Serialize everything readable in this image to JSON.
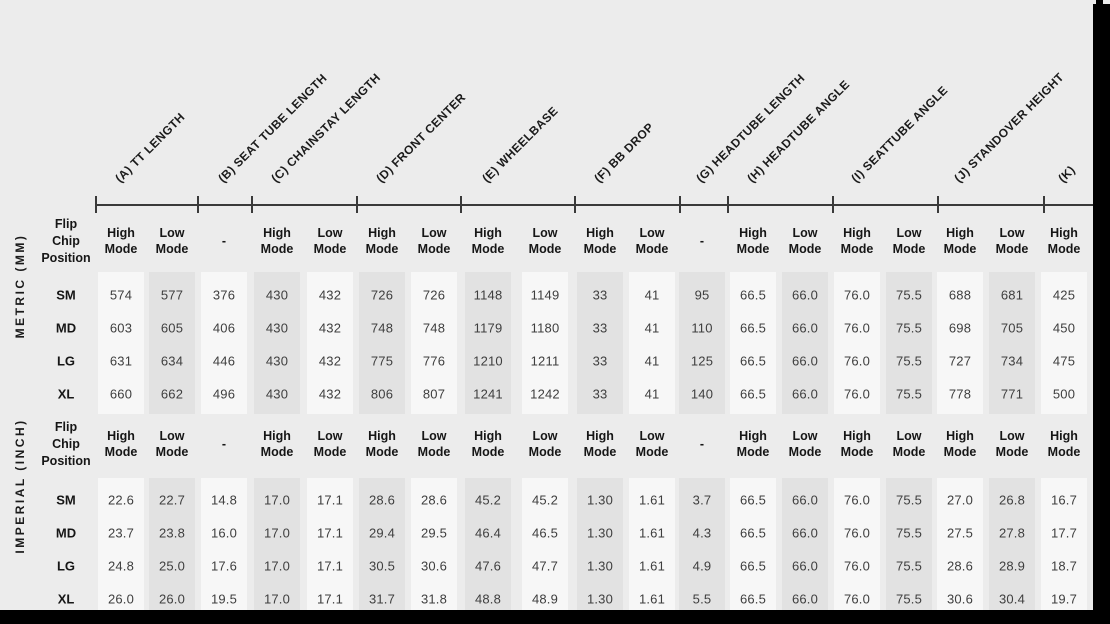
{
  "colors": {
    "background": "#ececec",
    "stripe_light": "#f7f7f7",
    "stripe_dark": "#e2e2e2",
    "frame_black": "#000000",
    "text_heading": "#161616",
    "text_value": "#3e3e3e",
    "axis": "#3a3a3a"
  },
  "chart_data": {
    "type": "table",
    "columns": {
      "groups": [
        {
          "label": "(A) TT LENGTH",
          "cols": [
            "High Mode",
            "Low Mode"
          ]
        },
        {
          "label": "(B) SEAT TUBE LENGTH",
          "cols": [
            "-"
          ]
        },
        {
          "label": "(C) CHAINSTAY LENGTH",
          "cols": [
            "High Mode",
            "Low Mode"
          ]
        },
        {
          "label": "(D) FRONT CENTER",
          "cols": [
            "High Mode",
            "Low Mode"
          ]
        },
        {
          "label": "(E) WHEELBASE",
          "cols": [
            "High Mode",
            "Low Mode"
          ]
        },
        {
          "label": "(F) BB DROP",
          "cols": [
            "High Mode",
            "Low Mode"
          ]
        },
        {
          "label": "(G) HEADTUBE LENGTH",
          "cols": [
            "-"
          ]
        },
        {
          "label": "(H) HEADTUBE ANGLE",
          "cols": [
            "High Mode",
            "Low Mode"
          ]
        },
        {
          "label": "(I) SEATTUBE ANGLE",
          "cols": [
            "High Mode",
            "Low Mode"
          ]
        },
        {
          "label": "(J) STANDOVER HEIGHT",
          "cols": [
            "High Mode",
            "Low Mode"
          ]
        },
        {
          "label": "(K)",
          "cols": [
            "High Mode"
          ]
        }
      ]
    },
    "sections": [
      {
        "unit_label": "METRIC (MM)",
        "flip_chip_header": "Flip Chip Position",
        "rows": [
          {
            "size": "SM",
            "values": [
              "574",
              "577",
              "376",
              "430",
              "432",
              "726",
              "726",
              "1148",
              "1149",
              "33",
              "41",
              "95",
              "66.5",
              "66.0",
              "76.0",
              "75.5",
              "688",
              "681",
              "425"
            ]
          },
          {
            "size": "MD",
            "values": [
              "603",
              "605",
              "406",
              "430",
              "432",
              "748",
              "748",
              "1179",
              "1180",
              "33",
              "41",
              "110",
              "66.5",
              "66.0",
              "76.0",
              "75.5",
              "698",
              "705",
              "450"
            ]
          },
          {
            "size": "LG",
            "values": [
              "631",
              "634",
              "446",
              "430",
              "432",
              "775",
              "776",
              "1210",
              "1211",
              "33",
              "41",
              "125",
              "66.5",
              "66.0",
              "76.0",
              "75.5",
              "727",
              "734",
              "475"
            ]
          },
          {
            "size": "XL",
            "values": [
              "660",
              "662",
              "496",
              "430",
              "432",
              "806",
              "807",
              "1241",
              "1242",
              "33",
              "41",
              "140",
              "66.5",
              "66.0",
              "76.0",
              "75.5",
              "778",
              "771",
              "500"
            ]
          }
        ]
      },
      {
        "unit_label": "IMPERIAL (INCH)",
        "flip_chip_header": "Flip Chip Position",
        "rows": [
          {
            "size": "SM",
            "values": [
              "22.6",
              "22.7",
              "14.8",
              "17.0",
              "17.1",
              "28.6",
              "28.6",
              "45.2",
              "45.2",
              "1.30",
              "1.61",
              "3.7",
              "66.5",
              "66.0",
              "76.0",
              "75.5",
              "27.0",
              "26.8",
              "16.7"
            ]
          },
          {
            "size": "MD",
            "values": [
              "23.7",
              "23.8",
              "16.0",
              "17.0",
              "17.1",
              "29.4",
              "29.5",
              "46.4",
              "46.5",
              "1.30",
              "1.61",
              "4.3",
              "66.5",
              "66.0",
              "76.0",
              "75.5",
              "27.5",
              "27.8",
              "17.7"
            ]
          },
          {
            "size": "LG",
            "values": [
              "24.8",
              "25.0",
              "17.6",
              "17.0",
              "17.1",
              "30.5",
              "30.6",
              "47.6",
              "47.7",
              "1.30",
              "1.61",
              "4.9",
              "66.5",
              "66.0",
              "76.0",
              "75.5",
              "28.6",
              "28.9",
              "18.7"
            ]
          },
          {
            "size": "XL",
            "values": [
              "26.0",
              "26.0",
              "19.5",
              "17.0",
              "17.1",
              "31.7",
              "31.8",
              "48.8",
              "48.9",
              "1.30",
              "1.61",
              "5.5",
              "66.5",
              "66.0",
              "76.0",
              "75.5",
              "30.6",
              "30.4",
              "19.7"
            ]
          }
        ]
      }
    ]
  }
}
